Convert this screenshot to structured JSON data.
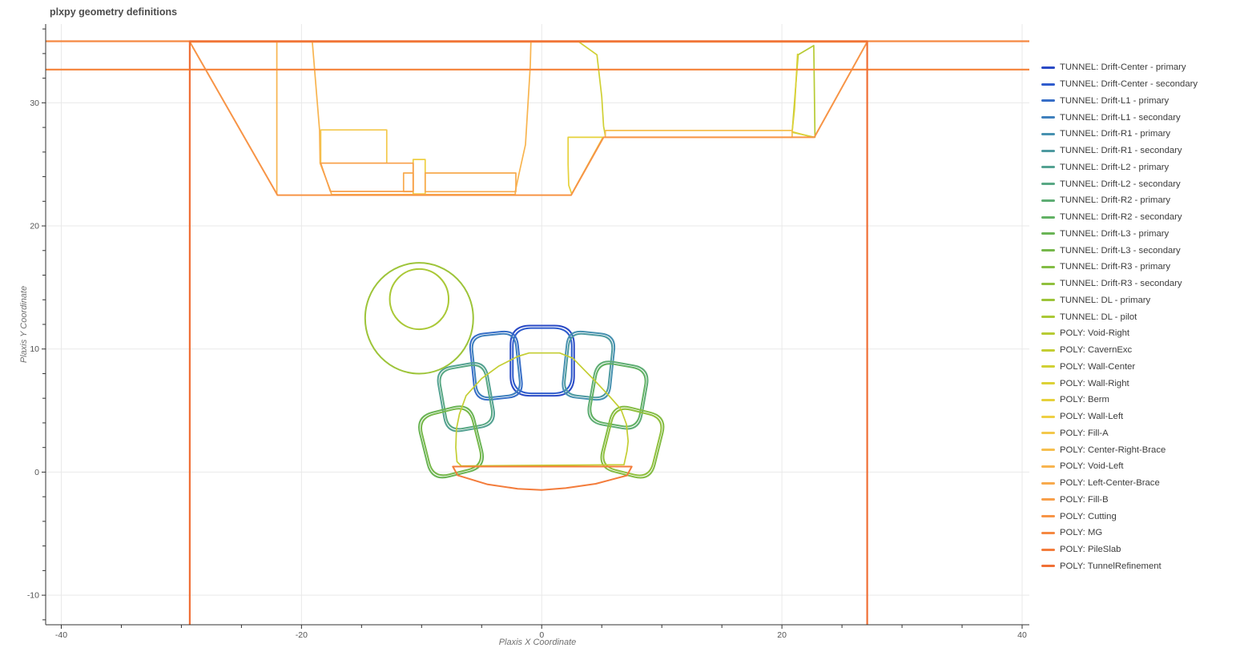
{
  "page": {
    "title": "plxpy geometry definitions"
  },
  "chart_data": {
    "type": "line",
    "title": "plxpy geometry definitions",
    "xlabel": "Plaxis X Coordinate",
    "ylabel": "Plaxis Y Coordinate",
    "xlim": [
      -41.3,
      40.6
    ],
    "ylim": [
      -12.4,
      36.4
    ],
    "x_major_ticks": [
      -40,
      -20,
      0,
      20,
      40
    ],
    "y_major_ticks": [
      -10,
      0,
      10,
      20,
      30
    ],
    "x_minor_step": 5,
    "y_minor_step": 2,
    "grid": true,
    "grid_color": "#e9e9e9",
    "axis_color": "#333333",
    "tick_label_color": "#535353",
    "legend_position": "right",
    "series": [
      {
        "label": "TUNNEL: Drift-Center - primary",
        "color": "#2a4ac5",
        "width": 2,
        "shape": {
          "type": "squircle",
          "cx": 0.05,
          "cy": 9.05,
          "rx": 2.65,
          "ry": 2.85,
          "rot": 0
        }
      },
      {
        "label": "TUNNEL: Drift-Center - secondary",
        "color": "#2f5ccd",
        "width": 2,
        "shape": {
          "type": "squircle",
          "cx": 0.05,
          "cy": 9.05,
          "rx": 2.45,
          "ry": 2.65,
          "rot": 0
        }
      },
      {
        "label": "TUNNEL: Drift-L1 - primary",
        "color": "#376ec7",
        "width": 2,
        "shape": {
          "type": "squircle",
          "cx": -3.8,
          "cy": 8.65,
          "rx": 2.0,
          "ry": 2.7,
          "rot": -6
        }
      },
      {
        "label": "TUNNEL: Drift-L1 - secondary",
        "color": "#3f80bd",
        "width": 2,
        "shape": {
          "type": "squircle",
          "cx": -3.8,
          "cy": 8.65,
          "rx": 1.82,
          "ry": 2.52,
          "rot": -6
        }
      },
      {
        "label": "TUNNEL: Drift-R1 - primary",
        "color": "#4791b0",
        "width": 2,
        "shape": {
          "type": "squircle",
          "cx": 3.9,
          "cy": 8.65,
          "rx": 2.0,
          "ry": 2.7,
          "rot": 6
        }
      },
      {
        "label": "TUNNEL: Drift-R1 - secondary",
        "color": "#4e9aa0",
        "width": 2,
        "shape": {
          "type": "squircle",
          "cx": 3.9,
          "cy": 8.65,
          "rx": 1.82,
          "ry": 2.52,
          "rot": 6
        }
      },
      {
        "label": "TUNNEL: Drift-L2 - primary",
        "color": "#54a292",
        "width": 2,
        "shape": {
          "type": "squircle",
          "cx": -6.3,
          "cy": 6.1,
          "rx": 2.1,
          "ry": 2.65,
          "rot": -10
        }
      },
      {
        "label": "TUNNEL: Drift-L2 - secondary",
        "color": "#59a884",
        "width": 2,
        "shape": {
          "type": "squircle",
          "cx": -6.3,
          "cy": 6.1,
          "rx": 1.92,
          "ry": 2.47,
          "rot": -10
        }
      },
      {
        "label": "TUNNEL: Drift-R2 - primary",
        "color": "#5ead74",
        "width": 2,
        "shape": {
          "type": "squircle",
          "cx": 6.35,
          "cy": 6.25,
          "rx": 2.25,
          "ry": 2.6,
          "rot": 10
        }
      },
      {
        "label": "TUNNEL: Drift-R2 - secondary",
        "color": "#62b164",
        "width": 2,
        "shape": {
          "type": "squircle",
          "cx": 6.35,
          "cy": 6.25,
          "rx": 2.07,
          "ry": 2.42,
          "rot": 10
        }
      },
      {
        "label": "TUNNEL: Drift-L3 - primary",
        "color": "#6ab455",
        "width": 2,
        "shape": {
          "type": "squircle",
          "cx": -7.55,
          "cy": 2.45,
          "rx": 2.35,
          "ry": 2.7,
          "rot": -14
        }
      },
      {
        "label": "TUNNEL: Drift-L3 - secondary",
        "color": "#76b84b",
        "width": 2,
        "shape": {
          "type": "squircle",
          "cx": -7.55,
          "cy": 2.45,
          "rx": 2.17,
          "ry": 2.52,
          "rot": -14
        }
      },
      {
        "label": "TUNNEL: Drift-R3 - primary",
        "color": "#83bc44",
        "width": 2,
        "shape": {
          "type": "squircle",
          "cx": 7.55,
          "cy": 2.43,
          "rx": 2.27,
          "ry": 2.7,
          "rot": 14
        }
      },
      {
        "label": "TUNNEL: Drift-R3 - secondary",
        "color": "#90c03d",
        "width": 2,
        "shape": {
          "type": "squircle",
          "cx": 7.55,
          "cy": 2.43,
          "rx": 2.09,
          "ry": 2.52,
          "rot": 14
        }
      },
      {
        "label": "TUNNEL: DL - primary",
        "color": "#9dc439",
        "width": 2,
        "shape": {
          "type": "ellipse",
          "cx": -10.2,
          "cy": 12.5,
          "rx": 4.5,
          "ry": 4.5
        }
      },
      {
        "label": "TUNNEL: DL - pilot",
        "color": "#aac836",
        "width": 2,
        "shape": {
          "type": "ellipse",
          "cx": -10.2,
          "cy": 14.05,
          "rx": 2.45,
          "ry": 2.45
        }
      },
      {
        "label": "POLY: Void-Right",
        "color": "#b7cb34",
        "width": 1.7,
        "shape": {
          "type": "polygon",
          "pts": [
            [
              21.35,
              33.9
            ],
            [
              22.65,
              34.65
            ],
            [
              22.75,
              27.2
            ],
            [
              20.85,
              27.6
            ]
          ]
        }
      },
      {
        "label": "POLY: CavernExc",
        "color": "#c4ce33",
        "width": 1.7,
        "shape": {
          "type": "polygon",
          "pts": [
            [
              -6.7,
              0.5
            ],
            [
              -7.05,
              0.85
            ],
            [
              -7.15,
              2.0
            ],
            [
              -7.1,
              3.5
            ],
            [
              -6.85,
              4.7
            ],
            [
              -6.3,
              6.2
            ],
            [
              -5.0,
              7.6
            ],
            [
              -3.6,
              8.6
            ],
            [
              -2.0,
              9.4
            ],
            [
              -1.05,
              9.68
            ],
            [
              1.5,
              9.68
            ],
            [
              2.6,
              9.25
            ],
            [
              4.4,
              7.45
            ],
            [
              5.7,
              6.1
            ],
            [
              6.6,
              5.1
            ],
            [
              7.05,
              3.9
            ],
            [
              7.2,
              2.5
            ],
            [
              7.1,
              1.7
            ],
            [
              6.85,
              0.6
            ]
          ]
        }
      },
      {
        "label": "POLY: Wall-Center",
        "color": "#d0d034",
        "width": 1.7,
        "shape": {
          "type": "polyline",
          "pts": [
            [
              3.1,
              34.95
            ],
            [
              4.6,
              33.9
            ],
            [
              5.0,
              30.5
            ],
            [
              5.15,
              28.1
            ],
            [
              5.3,
              27.3
            ]
          ]
        }
      },
      {
        "label": "POLY: Wall-Right",
        "color": "#dcd136",
        "width": 1.7,
        "shape": {
          "type": "polyline",
          "pts": [
            [
              21.3,
              33.95
            ],
            [
              21.05,
              29.5
            ],
            [
              20.85,
              27.65
            ],
            [
              22.6,
              27.2
            ]
          ]
        }
      },
      {
        "label": "POLY: Berm",
        "color": "#e6d13b",
        "width": 1.7,
        "shape": {
          "type": "polygon",
          "pts": [
            [
              2.2,
              27.2
            ],
            [
              5.1,
              27.2
            ],
            [
              2.5,
              22.6
            ],
            [
              2.25,
              23.3
            ],
            [
              2.2,
              25.0
            ]
          ]
        }
      },
      {
        "label": "POLY: Wall-Left",
        "color": "#eecf43",
        "width": 1.7,
        "shape": {
          "type": "polygon",
          "pts": [
            [
              -10.7,
              25.4
            ],
            [
              -9.7,
              25.4
            ],
            [
              -9.7,
              22.6
            ],
            [
              -10.7,
              22.6
            ]
          ]
        }
      },
      {
        "label": "POLY: Fill-A",
        "color": "#f3c84b",
        "width": 1.7,
        "shape": {
          "type": "polygon",
          "pts": [
            [
              -18.4,
              27.8
            ],
            [
              -12.9,
              27.8
            ],
            [
              -12.9,
              25.1
            ],
            [
              -18.4,
              25.1
            ]
          ]
        }
      },
      {
        "label": "POLY: Center-Right-Brace",
        "color": "#f6bf4e",
        "width": 1.7,
        "shape": {
          "type": "polygon",
          "pts": [
            [
              5.3,
              27.75
            ],
            [
              20.85,
              27.75
            ],
            [
              20.85,
              27.2
            ],
            [
              5.3,
              27.2
            ]
          ]
        }
      },
      {
        "label": "POLY: Void-Left",
        "color": "#f8b44f",
        "width": 1.7,
        "shape": {
          "type": "segments",
          "segs": [
            {
              "closed": true,
              "pts": [
                [
                  -19.1,
                  34.95
                ],
                [
                  -18.5,
                  27.8
                ],
                [
                  -18.45,
                  25.1
                ],
                [
                  -17.6,
                  22.9
                ],
                [
                  -17.5,
                  22.55
                ],
                [
                  -2.2,
                  22.55
                ],
                [
                  -2.2,
                  22.8
                ],
                [
                  -1.9,
                  24.2
                ],
                [
                  -1.35,
                  26.6
                ],
                [
                  -0.95,
                  33.0
                ],
                [
                  -0.9,
                  34.95
                ]
              ]
            },
            {
              "closed": false,
              "pts": [
                [
                  -22.05,
                  34.95
                ],
                [
                  -22.05,
                  22.55
                ]
              ]
            }
          ]
        }
      },
      {
        "label": "POLY: Left-Center-Brace",
        "color": "#f8aa4d",
        "width": 1.7,
        "shape": {
          "type": "segments",
          "segs": [
            {
              "closed": true,
              "pts": [
                [
                  -11.5,
                  24.3
                ],
                [
                  -10.7,
                  24.3
                ],
                [
                  -10.7,
                  22.78
                ],
                [
                  -11.5,
                  22.78
                ]
              ]
            },
            {
              "closed": true,
              "pts": [
                [
                  -9.7,
                  24.3
                ],
                [
                  -2.15,
                  24.3
                ],
                [
                  -2.15,
                  22.78
                ],
                [
                  -9.7,
                  22.78
                ]
              ]
            }
          ]
        }
      },
      {
        "label": "POLY: Fill-B",
        "color": "#f89f4a",
        "width": 1.7,
        "shape": {
          "type": "polygon",
          "pts": [
            [
              -18.4,
              25.1
            ],
            [
              -10.7,
              25.1
            ],
            [
              -10.7,
              22.8
            ],
            [
              -17.6,
              22.8
            ]
          ]
        }
      },
      {
        "label": "POLY: Cutting",
        "color": "#f79446",
        "width": 2,
        "shape": {
          "type": "polygon",
          "pts": [
            [
              -29.3,
              34.95
            ],
            [
              -22.0,
              22.5
            ],
            [
              2.45,
              22.5
            ],
            [
              5.15,
              27.2
            ],
            [
              22.7,
              27.2
            ],
            [
              27.1,
              34.95
            ]
          ]
        }
      },
      {
        "label": "POLY: MG",
        "color": "#f58841",
        "width": 2.2,
        "shape": {
          "type": "polygon",
          "pts": [
            [
              -42.0,
              35.0
            ],
            [
              41.5,
              35.0
            ],
            [
              41.5,
              32.7
            ],
            [
              -42.0,
              32.7
            ]
          ]
        }
      },
      {
        "label": "POLY: PileSlab",
        "color": "#f37c3b",
        "width": 2,
        "shape": {
          "type": "polygon",
          "pts": [
            [
              -7.4,
              0.45
            ],
            [
              7.5,
              0.45
            ],
            [
              7.1,
              -0.27
            ],
            [
              4.5,
              -0.95
            ],
            [
              2.0,
              -1.3
            ],
            [
              0.0,
              -1.45
            ],
            [
              -2.0,
              -1.35
            ],
            [
              -4.5,
              -1.0
            ],
            [
              -7.0,
              -0.26
            ]
          ]
        }
      },
      {
        "label": "POLY: TunnelRefinement",
        "color": "#f06f35",
        "width": 2.2,
        "shape": {
          "type": "polygon",
          "pts": [
            [
              -29.3,
              35.0
            ],
            [
              27.1,
              35.0
            ],
            [
              27.1,
              -13.5
            ],
            [
              -29.3,
              -13.5
            ]
          ]
        }
      }
    ]
  }
}
